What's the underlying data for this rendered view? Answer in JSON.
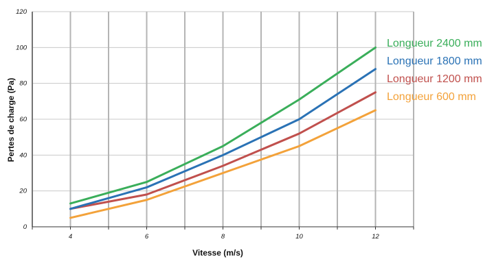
{
  "chart_data": {
    "type": "line",
    "x": [
      4,
      6,
      8,
      10,
      12
    ],
    "xlim": [
      3,
      13
    ],
    "ylim": [
      0,
      120
    ],
    "x_ticks": [
      "4",
      "6",
      "8",
      "10",
      "12"
    ],
    "y_ticks": [
      "0",
      "20",
      "40",
      "60",
      "80",
      "100",
      "120"
    ],
    "xlabel": "Vitesse (m/s)",
    "ylabel": "Pertes de charge (Pa)",
    "grid": true,
    "legend_position": "right",
    "series": [
      {
        "name": "Longueur 2400 mm",
        "color": "#3aae5a",
        "values": [
          13,
          25,
          45,
          71,
          100
        ]
      },
      {
        "name": "Longueur 1800 mm",
        "color": "#2a72b5",
        "values": [
          10,
          22,
          40,
          60,
          88
        ]
      },
      {
        "name": "Longueur 1200 mm",
        "color": "#c0504d",
        "values": [
          10,
          18,
          34,
          52,
          75
        ]
      },
      {
        "name": "Longueur 600 mm",
        "color": "#f3a23a",
        "values": [
          5,
          15,
          30,
          45,
          65
        ]
      }
    ]
  }
}
